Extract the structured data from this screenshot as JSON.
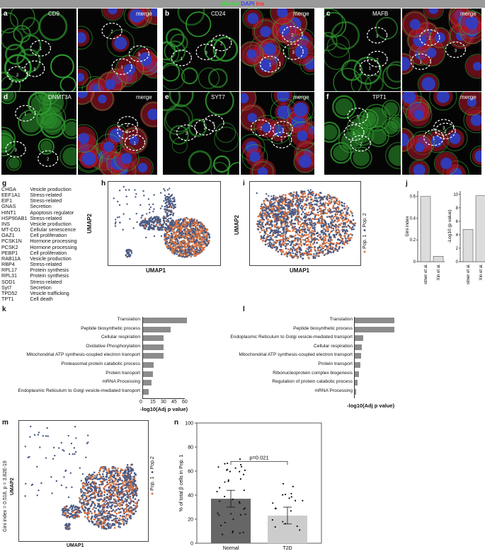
{
  "header": {
    "marker": "Marker",
    "dapi": "DAPI",
    "ins": "Ins"
  },
  "micro_panels": [
    {
      "letter": "a",
      "marker_name": "CD9",
      "merge": "merge",
      "labels": [
        "1",
        "2",
        "3"
      ]
    },
    {
      "letter": "b",
      "marker_name": "CD24",
      "merge": "merge",
      "labels": [
        "1",
        "2",
        "3"
      ]
    },
    {
      "letter": "c",
      "marker_name": "MAFB",
      "merge": "merge",
      "labels": [
        "1",
        "2",
        "3"
      ]
    },
    {
      "letter": "d",
      "marker_name": "DNMT3A",
      "merge": "merge",
      "labels": [
        "1",
        "2",
        "3"
      ]
    },
    {
      "letter": "e",
      "marker_name": "SYT7",
      "merge": "merge",
      "labels": [
        "1",
        "2",
        "3"
      ]
    },
    {
      "letter": "f",
      "marker_name": "TPT1",
      "merge": "merge",
      "labels": [
        "1",
        "2",
        "3"
      ]
    }
  ],
  "gene_panel": {
    "letter": "g",
    "rows": [
      [
        "CHGA",
        "Vesicle production"
      ],
      [
        "EEF1A1",
        "Stress-related"
      ],
      [
        "EIF1",
        "Stress-related"
      ],
      [
        "GNAS",
        "Secretion"
      ],
      [
        "HINT1",
        "Apoptosis regulator"
      ],
      [
        "HSP90AB1",
        "Stress-related"
      ],
      [
        "INS",
        "Vesicle production"
      ],
      [
        "MT-CO1",
        "Cellular senescence"
      ],
      [
        "OAZ1",
        "Cell proliferation"
      ],
      [
        "PCSK1N",
        "Hormone processing"
      ],
      [
        "PCSK2",
        "Hormone processing"
      ],
      [
        "PEBP1",
        "Cell proliferation"
      ],
      [
        "RAB11A",
        "Vesicle production"
      ],
      [
        "RBP4",
        "Stress-related"
      ],
      [
        "RPL17",
        "Protein synthesis"
      ],
      [
        "RPL31",
        "Protein synthesis"
      ],
      [
        "SOD1",
        "Stress-related"
      ],
      [
        "Syt7",
        "Secretion"
      ],
      [
        "TPD52",
        "Vesicle trafficking"
      ],
      [
        "TPT1",
        "Cell death"
      ]
    ]
  },
  "umap_h": {
    "letter": "h",
    "xlabel": "UMAP1",
    "ylabel": "UMAP2"
  },
  "umap_i": {
    "letter": "i",
    "xlabel": "UMAP1",
    "ylabel": "UMAP2",
    "legend": [
      "Pop. 1",
      "Pop. 2"
    ]
  },
  "umap_m": {
    "letter": "m",
    "xlabel": "UMAP1",
    "ylabel": "UMAP2",
    "legend": [
      "Pop. 1",
      "Pop.2"
    ],
    "side_text": "Gini index = 0.518, p = 3.82E-19"
  },
  "colors": {
    "pop1": "#d9733f",
    "pop2": "#4a5a83",
    "bar": "#8c8c8c",
    "normal": "#666666",
    "t2d": "#cccccc"
  },
  "chart_data": [
    {
      "type": "bar",
      "panel": "j-left",
      "categories": [
        "Kaestner et al.",
        "Xin et al."
      ],
      "values": [
        0.6,
        0.05
      ],
      "ylabel": "Gini index",
      "ylim": [
        0,
        0.65
      ],
      "yticks": [
        "0",
        "0.2",
        "0.4",
        "0.6"
      ]
    },
    {
      "type": "bar",
      "panel": "j-right",
      "categories": [
        "Kaestner et al.",
        "Xin et al."
      ],
      "values": [
        4.8,
        9.8
      ],
      "ylabel": "-Log10 (p value)",
      "ylim": [
        0,
        10.5
      ],
      "yticks": [
        "0",
        "2",
        "4",
        "6",
        "8",
        "10"
      ]
    },
    {
      "type": "bar",
      "panel": "k",
      "orientation": "horizontal",
      "categories": [
        "Translation",
        "Peptide biosynthetic process",
        "Cellular respiration",
        "Oxidative Phosphorylation",
        "Mitochondrial ATP synthesis-coupled electron transport",
        "Proteasomal protein catabolic process",
        "Protein transport",
        "mRNA Processing",
        "Endoplasmic Reticulum to Golgi vesicle-mediated transport"
      ],
      "values": [
        63,
        40,
        30,
        30,
        30,
        16,
        15,
        13,
        9
      ],
      "xlabel": "-log10(Adj p value)",
      "xlim": [
        0,
        65
      ],
      "xticks": [
        "0",
        "15",
        "30",
        "45",
        "60"
      ]
    },
    {
      "type": "bar",
      "panel": "l",
      "orientation": "horizontal",
      "categories": [
        "Translation",
        "Peptide biosynthetic process",
        "Endoplasmic Reticulum to Golgi vesicle-mediated transport",
        "Cellular respiration",
        "Mitochondrial ATP synthesis-coupled electron transport",
        "Protein transport",
        "Ribonucleoprotein complex biogenesis",
        "Regulation of protein catabolic process",
        "mRNA Processing"
      ],
      "values": [
        60,
        60,
        14,
        12,
        10,
        9,
        7,
        5,
        3
      ],
      "xlabel": "-log10(Adj p value)",
      "xlim": [
        0,
        65
      ]
    },
    {
      "type": "bar",
      "panel": "n",
      "categories": [
        "Normal",
        "T2D"
      ],
      "values": [
        37,
        23
      ],
      "errors": [
        7,
        7
      ],
      "ylabel": "% of total β cells in Pop. 1",
      "ylim": [
        0,
        100
      ],
      "yticks": [
        "0",
        "20",
        "40",
        "60",
        "80",
        "100"
      ],
      "annotation": "p=0.021"
    }
  ]
}
